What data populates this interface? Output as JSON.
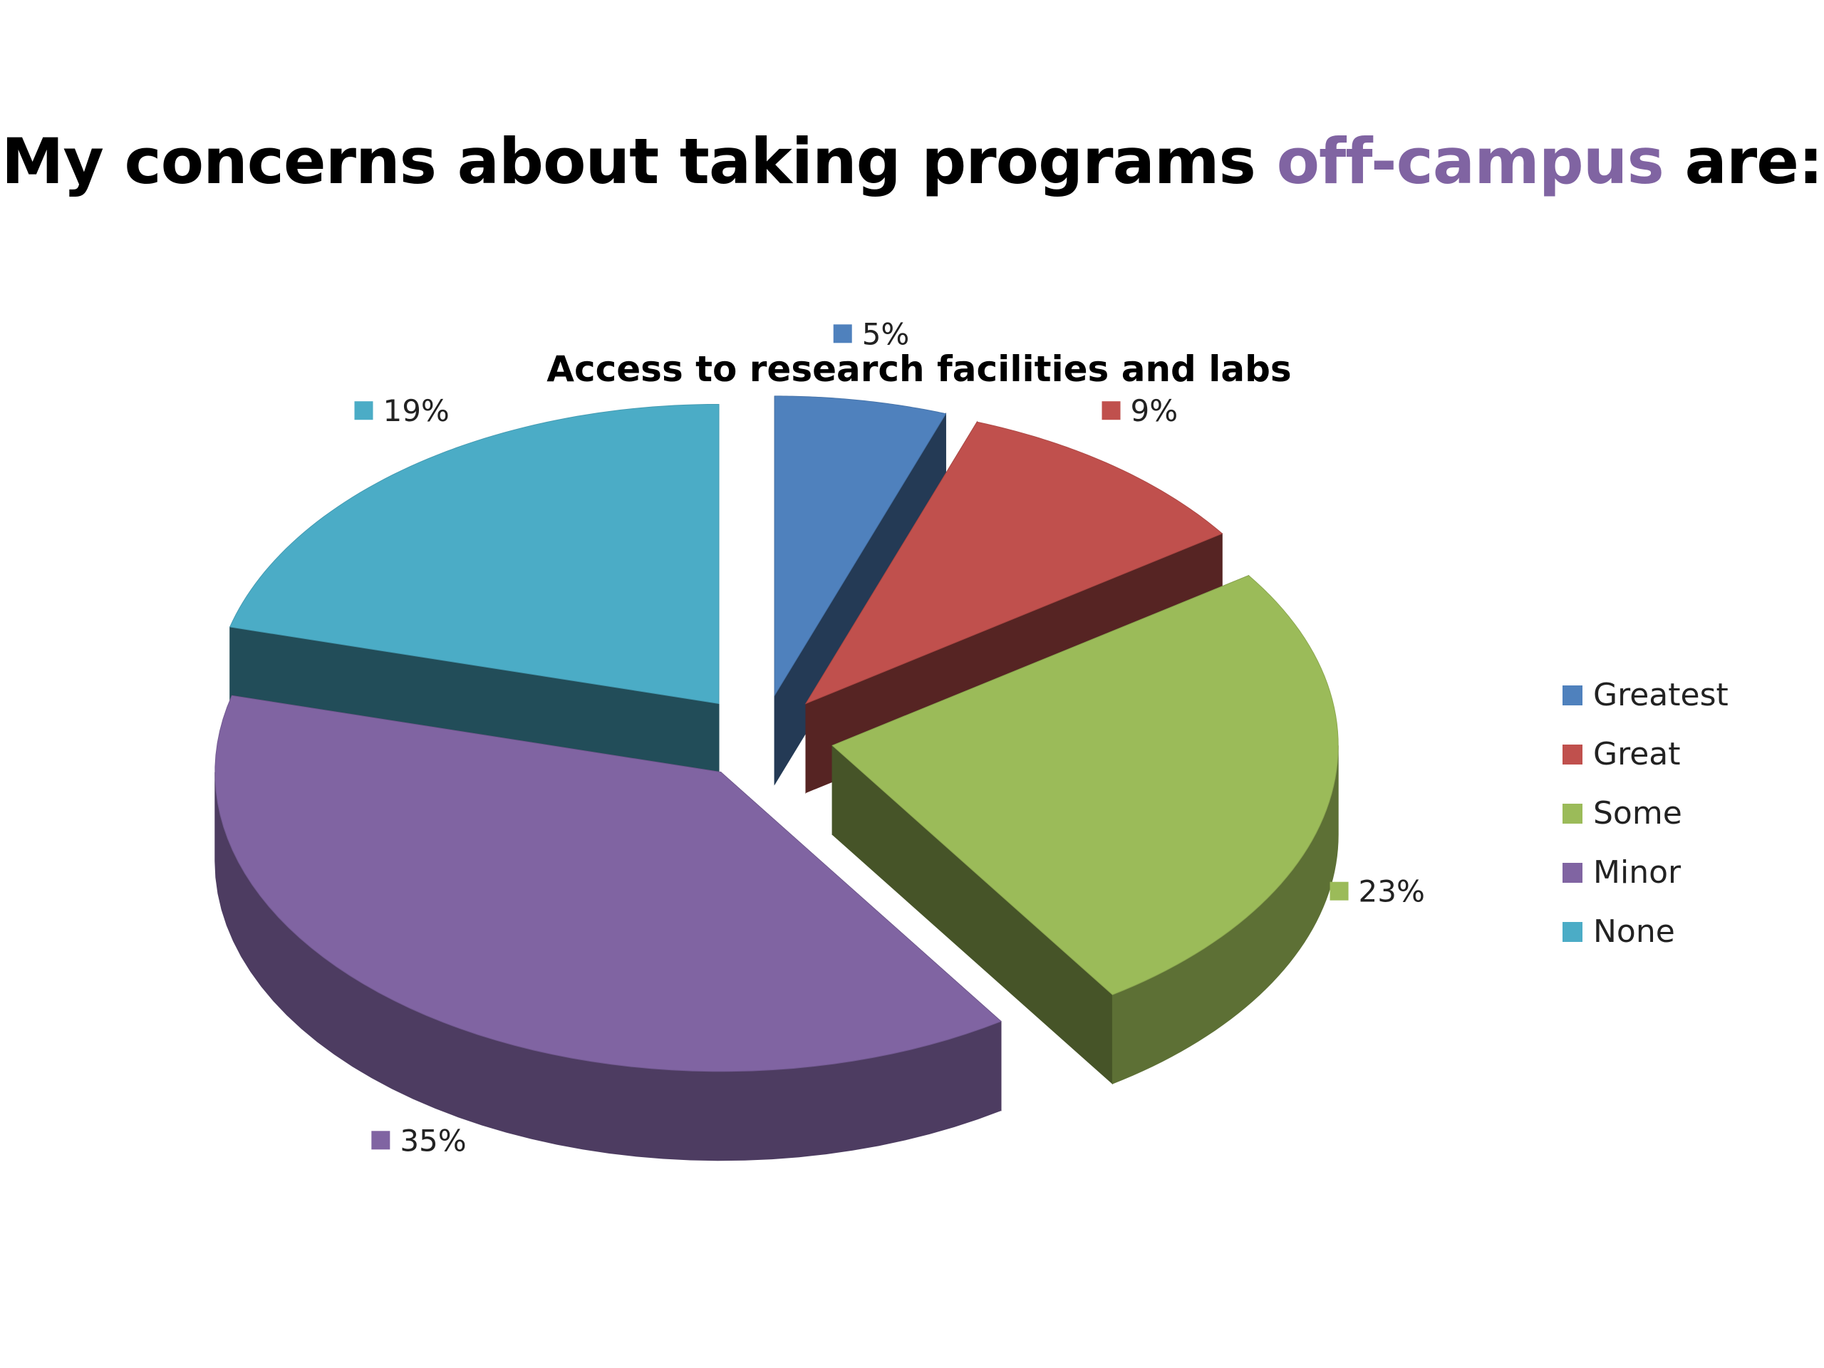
{
  "slide": {
    "title_before": "My concerns about taking programs ",
    "title_highlight": "off-campus",
    "title_after": " are:",
    "highlight_color": "#8064a2"
  },
  "chart_data": {
    "type": "pie",
    "style": "3d-exploded",
    "title": "Access to research facilities and labs",
    "categories": [
      "Greatest",
      "Great",
      "Some",
      "Minor",
      "None"
    ],
    "values": [
      5,
      9,
      23,
      35,
      19
    ],
    "data_labels": [
      "5%",
      "9%",
      "23%",
      "35%",
      "19%"
    ],
    "colors": [
      "#4f81bd",
      "#c0504d",
      "#9bbb59",
      "#8064a2",
      "#4bacc6"
    ],
    "legend_position": "right"
  }
}
